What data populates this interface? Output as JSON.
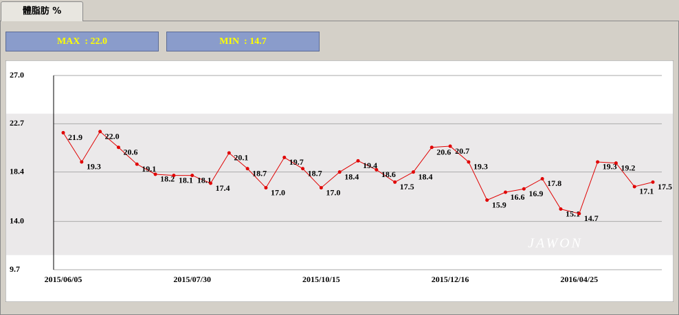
{
  "tab": "體脂肪 %",
  "stats": {
    "max": "MAX  : 22.0",
    "min": "MIN  : 14.7"
  },
  "chart_data": {
    "type": "line",
    "categories": [
      "2015/06/05",
      null,
      null,
      null,
      null,
      null,
      null,
      "2015/07/30",
      null,
      null,
      null,
      null,
      null,
      null,
      "2015/10/15",
      null,
      null,
      null,
      null,
      null,
      null,
      "2015/12/16",
      null,
      null,
      null,
      null,
      null,
      null,
      "2016/04/25",
      null,
      null,
      null,
      null
    ],
    "series": [
      {
        "color": "#e00000",
        "values": [
          21.9,
          19.3,
          22.0,
          20.6,
          19.1,
          18.2,
          18.1,
          18.1,
          17.4,
          20.1,
          18.7,
          17.0,
          19.7,
          18.7,
          17.0,
          18.4,
          19.4,
          18.6,
          17.5,
          18.4,
          20.6,
          20.7,
          19.3,
          15.9,
          16.6,
          16.9,
          17.8,
          15.1,
          14.7,
          19.3,
          19.2,
          17.1,
          17.5
        ],
        "value_labels": [
          "21.9",
          "19.3",
          "22.0",
          "20.6",
          "19.1",
          "18.2",
          "18.1",
          "18.1",
          "17.4",
          "20.1",
          "18.7",
          "17.0",
          "19.7",
          "18.7",
          "17.0",
          "18.4",
          "19.4",
          "18.6",
          "17.5",
          "18.4",
          "20.6",
          "20.7",
          "19.3",
          "15.9",
          "16.6",
          "16.9",
          "17.8",
          "15.1",
          "14.7",
          "19.3",
          "19.2",
          "17.1",
          "17.5"
        ]
      }
    ],
    "ylim": [
      9.7,
      27
    ],
    "yticks": [
      {
        "value": 27,
        "label": "27.0"
      },
      22.7,
      18.4,
      {
        "value": 14,
        "label": "14.0"
      },
      9.7
    ],
    "shaded_range": [
      11,
      23.6
    ],
    "grid": true,
    "watermark": "JAWON"
  }
}
